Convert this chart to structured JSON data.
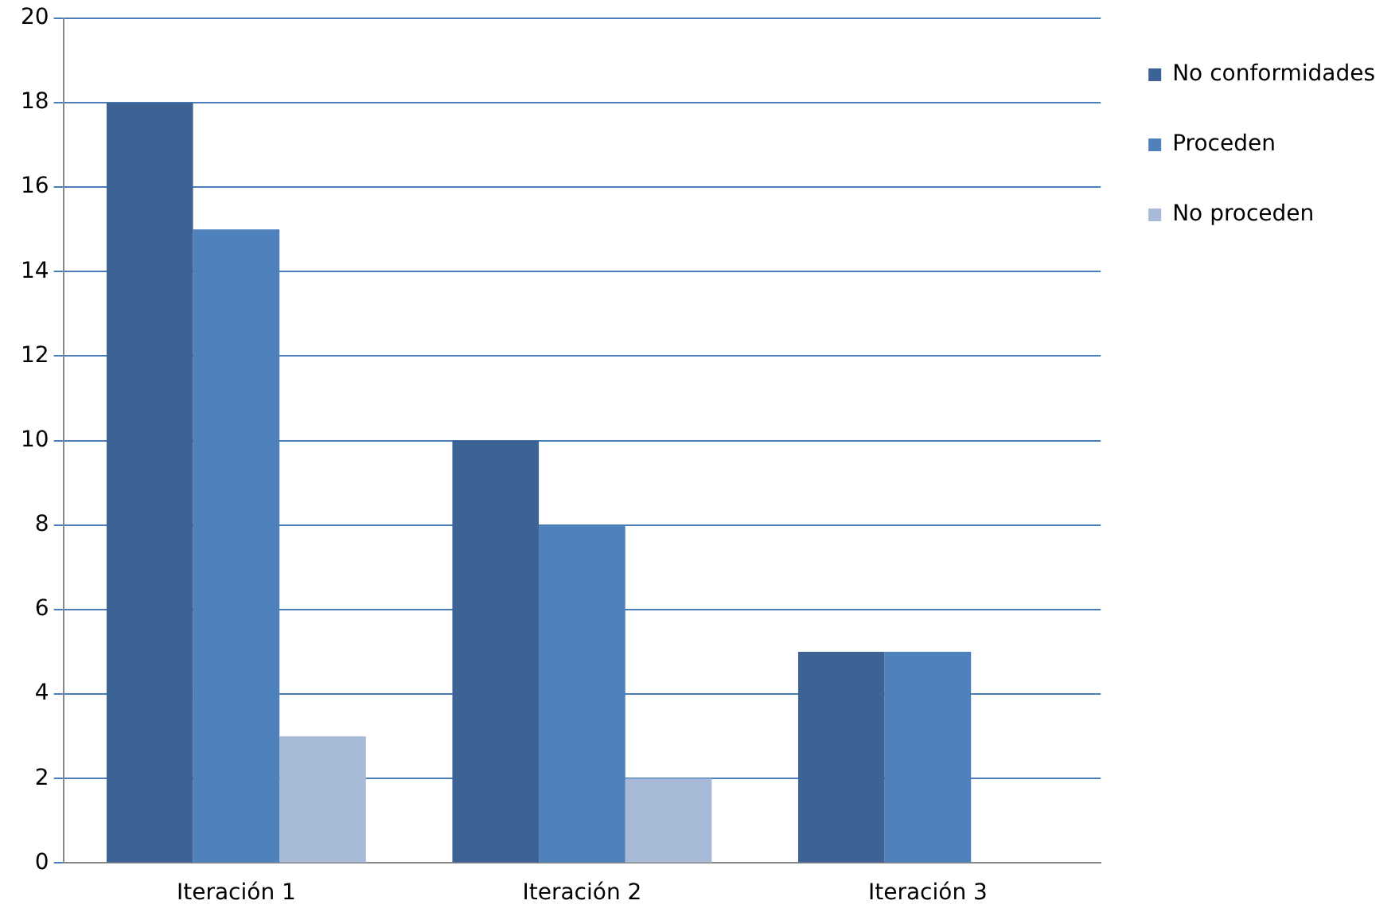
{
  "chart_data": {
    "type": "bar",
    "categories": [
      "Iteración 1",
      "Iteración 2",
      "Iteración 3"
    ],
    "series": [
      {
        "name": "No conformidades",
        "color": "#3c6296",
        "values": [
          18,
          10,
          5
        ]
      },
      {
        "name": "Proceden",
        "color": "#4f81bd",
        "values": [
          15,
          8,
          5
        ]
      },
      {
        "name": "No proceden",
        "color": "#a7bbd9",
        "values": [
          3,
          2,
          0
        ]
      }
    ],
    "ylim": [
      0,
      20
    ],
    "yticks": [
      0,
      2,
      4,
      6,
      8,
      10,
      12,
      14,
      16,
      18,
      20
    ],
    "grid": "y",
    "legend": "right"
  }
}
